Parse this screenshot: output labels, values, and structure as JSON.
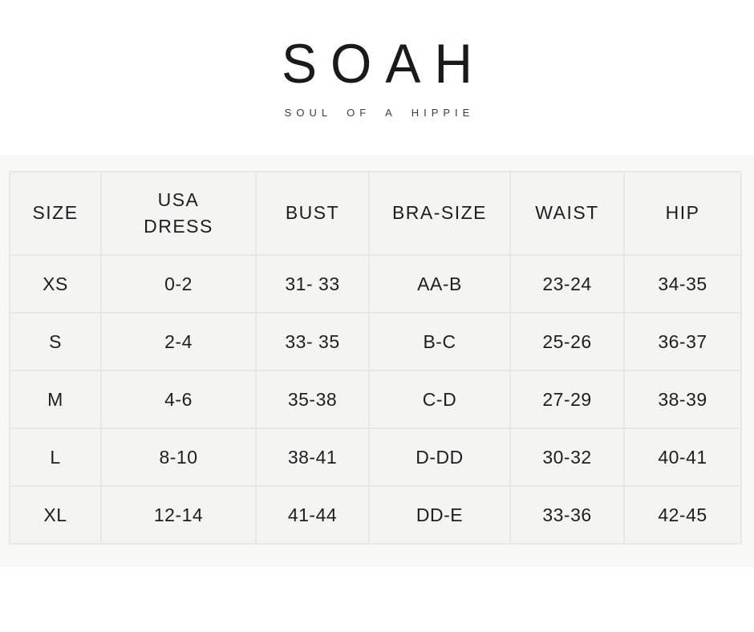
{
  "brand": {
    "name": "SOAH",
    "tagline": "SOUL OF A HIPPIE"
  },
  "size_chart": {
    "headers": [
      "SIZE",
      "USA\nDRESS",
      "BUST",
      "BRA-SIZE",
      "WAIST",
      "HIP"
    ],
    "rows": [
      [
        "XS",
        "0-2",
        "31- 33",
        "AA-B",
        "23-24",
        "34-35"
      ],
      [
        "S",
        "2-4",
        "33- 35",
        "B-C",
        "25-26",
        "36-37"
      ],
      [
        "M",
        "4-6",
        "35-38",
        "C-D",
        "27-29",
        "38-39"
      ],
      [
        "L",
        "8-10",
        "38-41",
        "D-DD",
        "30-32",
        "40-41"
      ],
      [
        "XL",
        "12-14",
        "41-44",
        "DD-E",
        "33-36",
        "42-45"
      ]
    ]
  },
  "colors": {
    "page_background": "#ffffff",
    "band_background": "#f8f8f7",
    "cell_background": "#f4f4f2",
    "cell_border": "#ebe8e0",
    "table_text": "#1e1e1e",
    "logo_text": "#1a1a1c",
    "tagline_text": "#3d3d3d"
  }
}
